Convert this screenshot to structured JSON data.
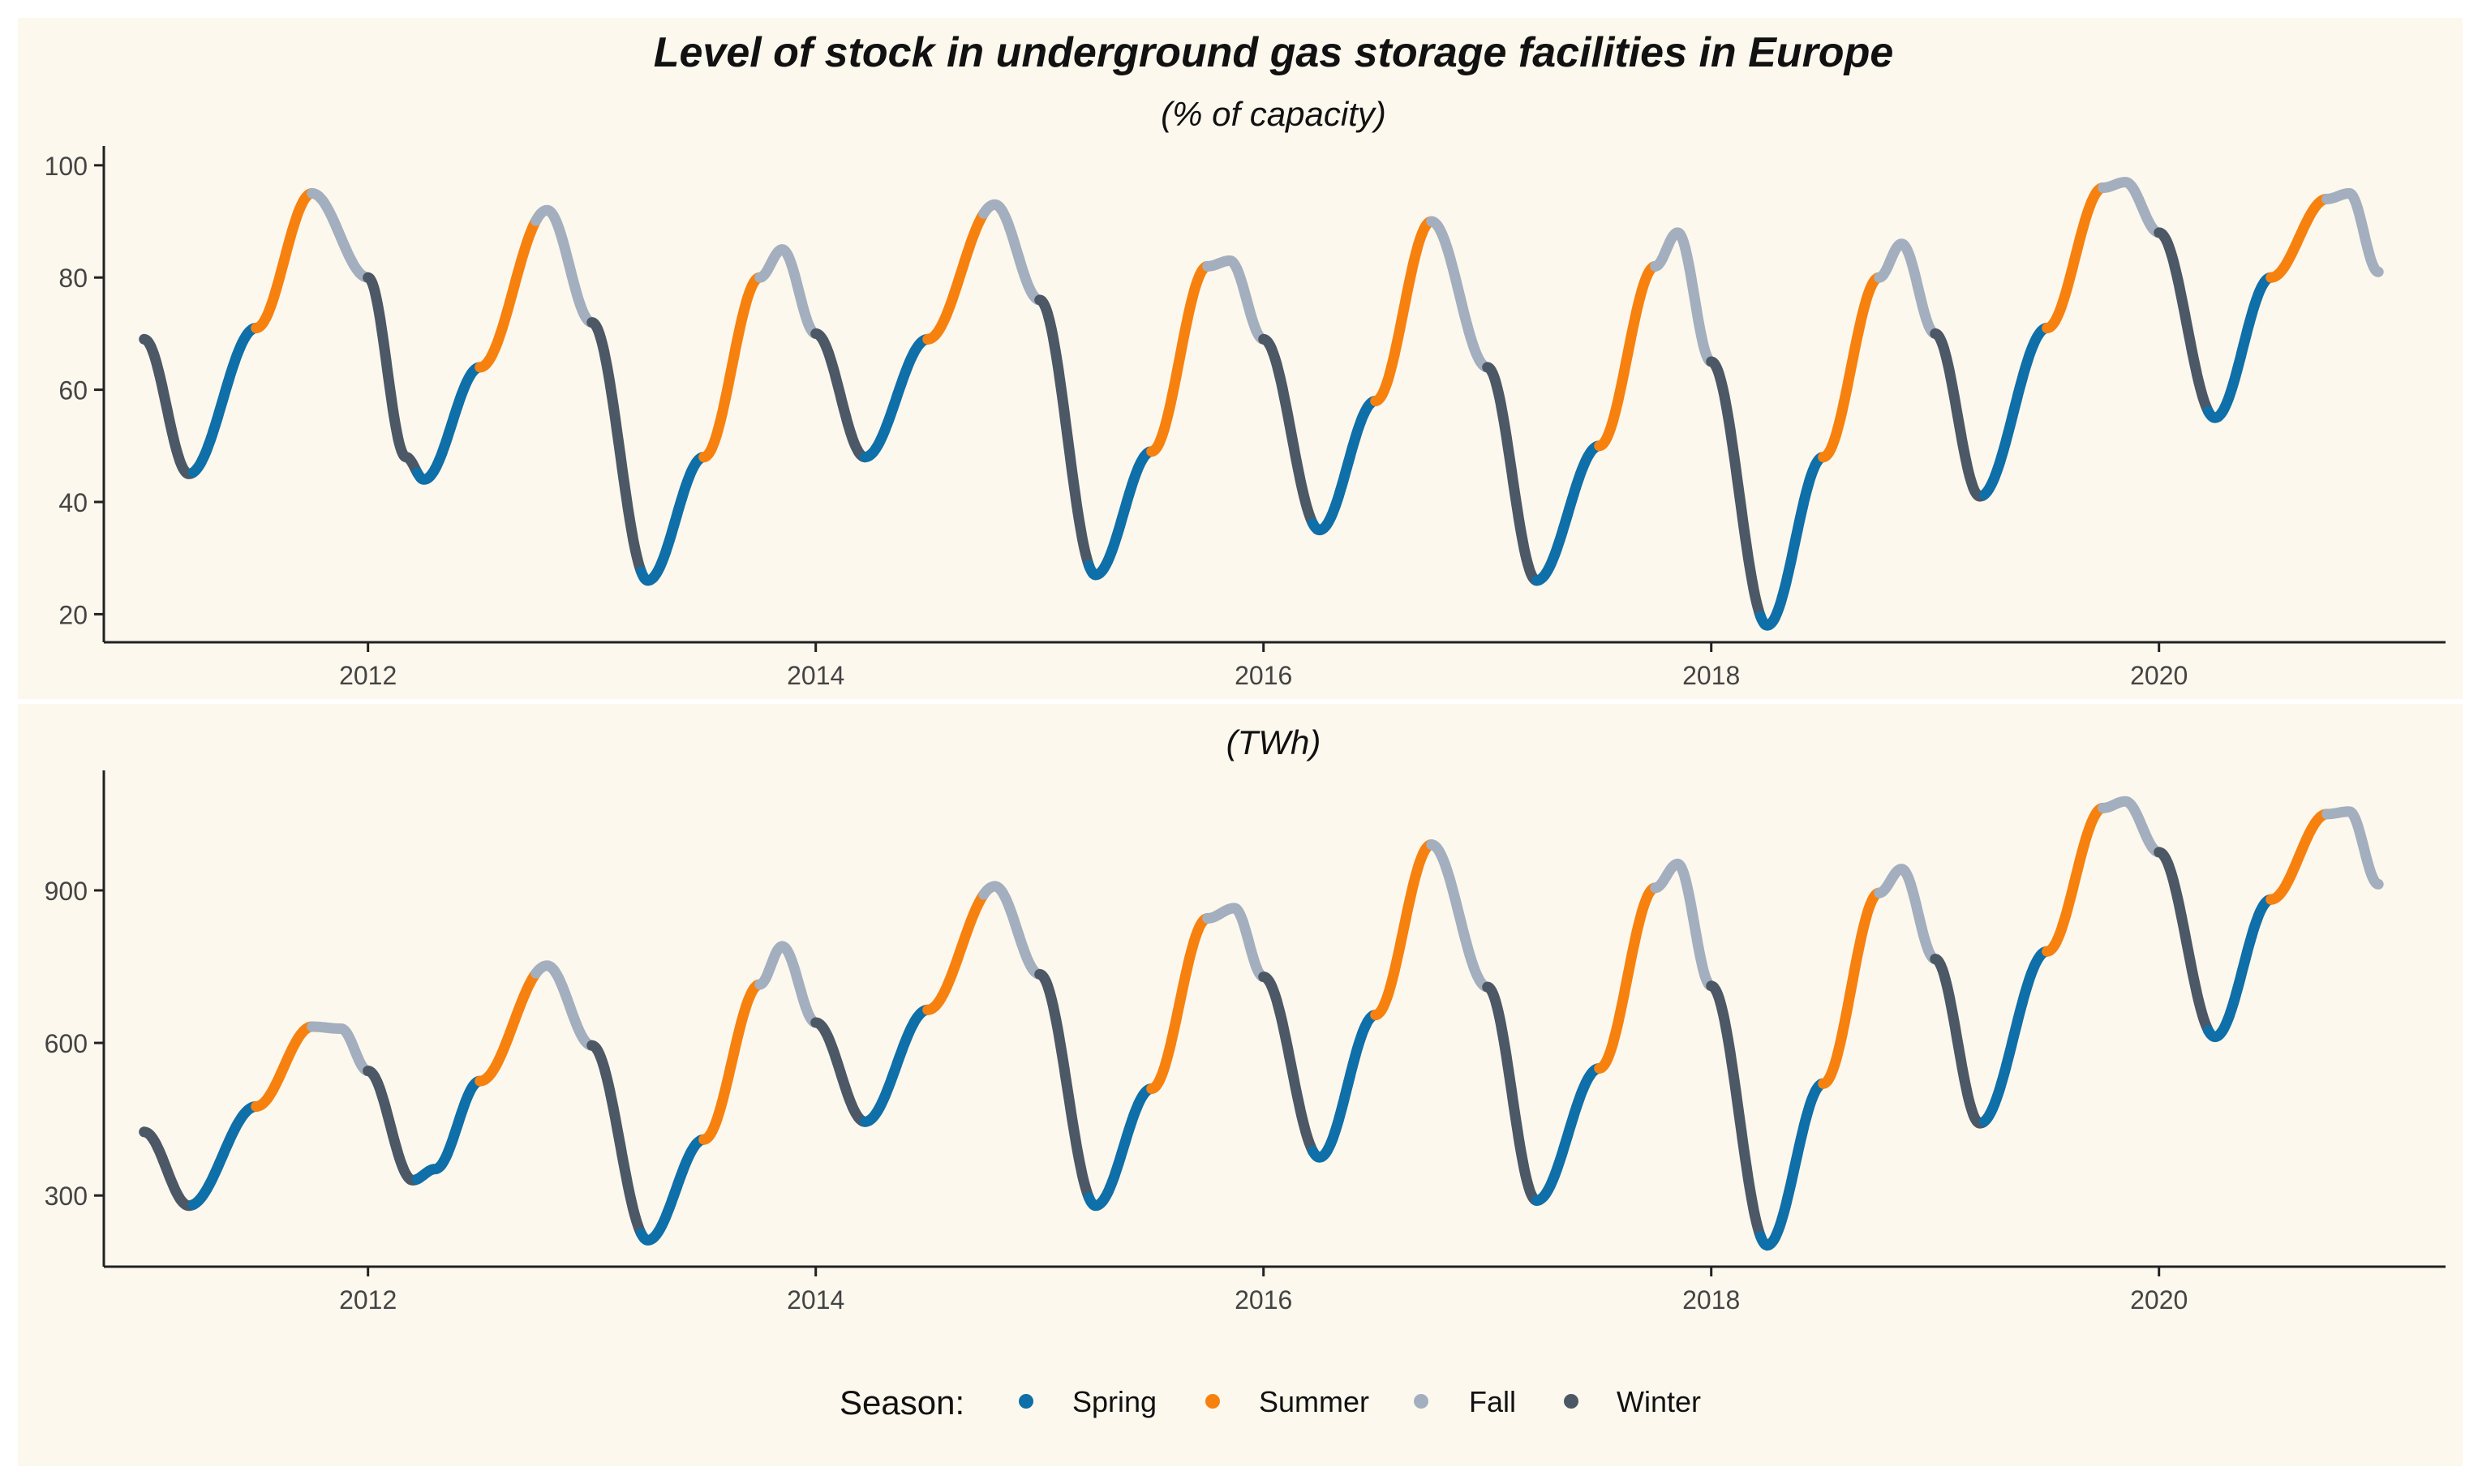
{
  "title": "Level of stock in underground gas storage facilities in Europe",
  "colors": {
    "background": "#fcf8ee",
    "axis": "#222222",
    "tick_text": "#444444",
    "Spring": "#0f6fa8",
    "Summer": "#f7810f",
    "Fall": "#a3afbe",
    "Winter": "#4d5866"
  },
  "chart_data": [
    {
      "type": "line",
      "subtitle": "(% of capacity)",
      "xlabel": "",
      "ylabel": "",
      "xlim": [
        2010.82,
        2021.28
      ],
      "ylim": [
        15,
        102
      ],
      "x_ticks": [
        2012,
        2014,
        2016,
        2018,
        2020
      ],
      "x_tick_labels": [
        "2012",
        "2014",
        "2016",
        "2018",
        "2020"
      ],
      "y_ticks": [
        20,
        40,
        60,
        80,
        100
      ],
      "y_tick_labels": [
        "20",
        "40",
        "60",
        "80",
        "100"
      ],
      "grid": false,
      "points": [
        [
          2011.0,
          69
        ],
        [
          2011.2,
          45
        ],
        [
          2011.5,
          71
        ],
        [
          2011.75,
          95
        ],
        [
          2012.0,
          80
        ],
        [
          2012.17,
          48
        ],
        [
          2012.25,
          44
        ],
        [
          2012.5,
          64
        ],
        [
          2012.8,
          92
        ],
        [
          2013.0,
          72
        ],
        [
          2013.25,
          26
        ],
        [
          2013.5,
          48
        ],
        [
          2013.75,
          80
        ],
        [
          2013.85,
          85
        ],
        [
          2014.0,
          70
        ],
        [
          2014.22,
          48
        ],
        [
          2014.5,
          69
        ],
        [
          2014.8,
          93
        ],
        [
          2015.0,
          76
        ],
        [
          2015.25,
          27
        ],
        [
          2015.5,
          49
        ],
        [
          2015.75,
          82
        ],
        [
          2015.85,
          83
        ],
        [
          2016.0,
          69
        ],
        [
          2016.25,
          35
        ],
        [
          2016.5,
          58
        ],
        [
          2016.75,
          90
        ],
        [
          2017.0,
          64
        ],
        [
          2017.22,
          26
        ],
        [
          2017.5,
          50
        ],
        [
          2017.75,
          82
        ],
        [
          2017.85,
          88
        ],
        [
          2018.0,
          65
        ],
        [
          2018.25,
          18
        ],
        [
          2018.5,
          48
        ],
        [
          2018.75,
          80
        ],
        [
          2018.85,
          86
        ],
        [
          2019.0,
          70
        ],
        [
          2019.2,
          41
        ],
        [
          2019.5,
          71
        ],
        [
          2019.75,
          96
        ],
        [
          2019.85,
          97
        ],
        [
          2020.0,
          88
        ],
        [
          2020.25,
          55
        ],
        [
          2020.5,
          80
        ],
        [
          2020.75,
          94
        ],
        [
          2020.85,
          95
        ],
        [
          2020.98,
          81
        ]
      ]
    },
    {
      "type": "line",
      "subtitle": "(TWh)",
      "xlabel": "",
      "ylabel": "",
      "xlim": [
        2010.82,
        2021.28
      ],
      "ylim": [
        160,
        1120
      ],
      "x_ticks": [
        2012,
        2014,
        2016,
        2018,
        2020
      ],
      "x_tick_labels": [
        "2012",
        "2014",
        "2016",
        "2018",
        "2020"
      ],
      "y_ticks": [
        300,
        600,
        900
      ],
      "y_tick_labels": [
        "300",
        "600",
        "900"
      ],
      "grid": false,
      "points": [
        [
          2011.0,
          425
        ],
        [
          2011.2,
          280
        ],
        [
          2011.5,
          475
        ],
        [
          2011.75,
          632
        ],
        [
          2011.88,
          628
        ],
        [
          2012.0,
          545
        ],
        [
          2012.2,
          330
        ],
        [
          2012.3,
          352
        ],
        [
          2012.5,
          525
        ],
        [
          2012.8,
          752
        ],
        [
          2013.0,
          595
        ],
        [
          2013.25,
          212
        ],
        [
          2013.5,
          410
        ],
        [
          2013.75,
          715
        ],
        [
          2013.85,
          790
        ],
        [
          2014.0,
          640
        ],
        [
          2014.22,
          445
        ],
        [
          2014.5,
          665
        ],
        [
          2014.8,
          908
        ],
        [
          2015.0,
          735
        ],
        [
          2015.25,
          280
        ],
        [
          2015.5,
          510
        ],
        [
          2015.75,
          845
        ],
        [
          2015.87,
          865
        ],
        [
          2016.0,
          730
        ],
        [
          2016.25,
          375
        ],
        [
          2016.5,
          655
        ],
        [
          2016.75,
          990
        ],
        [
          2017.0,
          710
        ],
        [
          2017.22,
          290
        ],
        [
          2017.5,
          550
        ],
        [
          2017.75,
          905
        ],
        [
          2017.85,
          952
        ],
        [
          2018.0,
          712
        ],
        [
          2018.25,
          202
        ],
        [
          2018.5,
          520
        ],
        [
          2018.75,
          895
        ],
        [
          2018.85,
          942
        ],
        [
          2019.0,
          765
        ],
        [
          2019.2,
          442
        ],
        [
          2019.5,
          780
        ],
        [
          2019.75,
          1062
        ],
        [
          2019.85,
          1075
        ],
        [
          2020.0,
          975
        ],
        [
          2020.25,
          612
        ],
        [
          2020.5,
          882
        ],
        [
          2020.75,
          1050
        ],
        [
          2020.85,
          1055
        ],
        [
          2020.98,
          912
        ]
      ]
    }
  ],
  "legend": {
    "title": "Season:",
    "position": "bottom",
    "items": [
      {
        "label": "Spring",
        "key": "Spring"
      },
      {
        "label": "Summer",
        "key": "Summer"
      },
      {
        "label": "Fall",
        "key": "Fall"
      },
      {
        "label": "Winter",
        "key": "Winter"
      }
    ]
  }
}
